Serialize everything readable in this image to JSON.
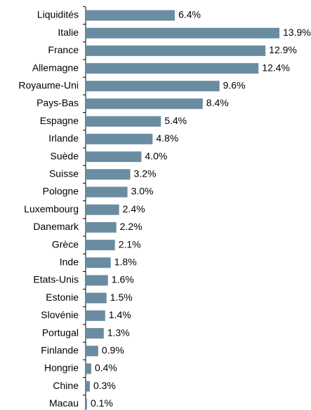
{
  "chart_data": {
    "type": "barh",
    "categories": [
      "Liquidités",
      "Italie",
      "France",
      "Allemagne",
      "Royaume-Uni",
      "Pays-Bas",
      "Espagne",
      "Irlande",
      "Suède",
      "Suisse",
      "Pologne",
      "Luxembourg",
      "Danemark",
      "Grèce",
      "Inde",
      "Etats-Unis",
      "Estonie",
      "Slovénie",
      "Portugal",
      "Finlande",
      "Hongrie",
      "Chine",
      "Macau"
    ],
    "values": [
      6.4,
      13.9,
      12.9,
      12.4,
      9.6,
      8.4,
      5.4,
      4.8,
      4.0,
      3.2,
      3.0,
      2.4,
      2.2,
      2.1,
      1.8,
      1.6,
      1.5,
      1.4,
      1.3,
      0.9,
      0.4,
      0.3,
      0.1
    ],
    "value_labels": [
      "6.4%",
      "13.9%",
      "12.9%",
      "12.4%",
      "9.6%",
      "8.4%",
      "5.4%",
      "4.8%",
      "4.0%",
      "3.2%",
      "3.0%",
      "2.4%",
      "2.2%",
      "2.1%",
      "1.8%",
      "1.6%",
      "1.5%",
      "1.4%",
      "1.3%",
      "0.9%",
      "0.4%",
      "0.3%",
      "0.1%"
    ],
    "color": "#6a8ca0",
    "xlim": [
      0,
      14
    ]
  }
}
